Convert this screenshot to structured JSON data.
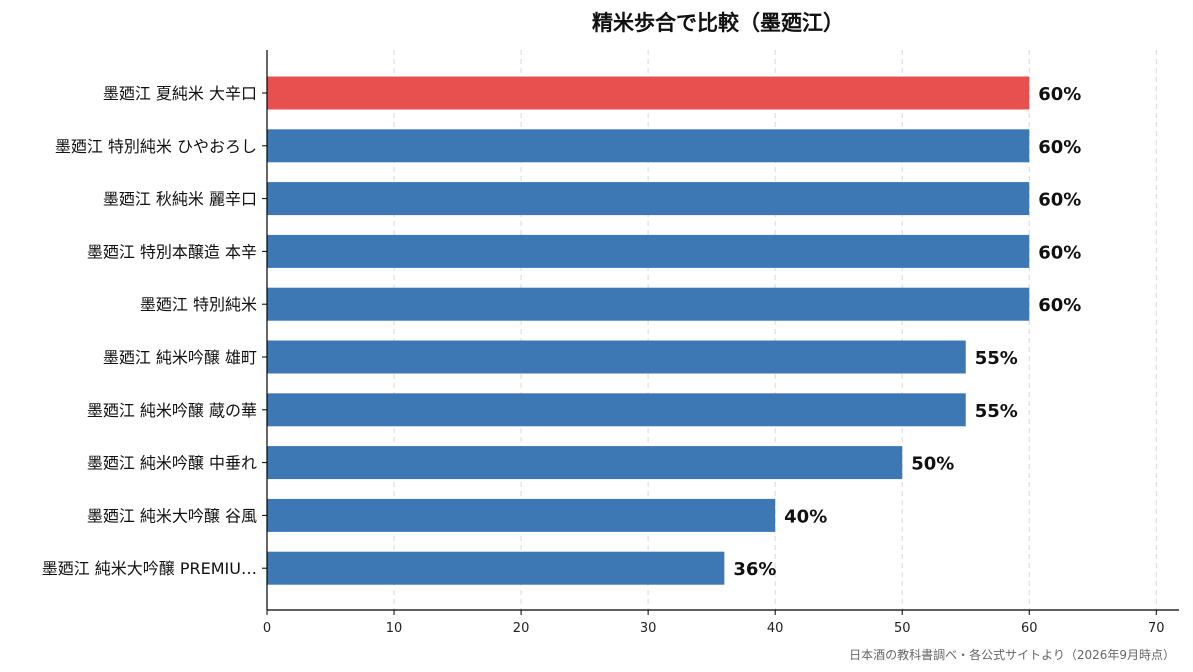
{
  "chart_data": {
    "type": "bar",
    "orientation": "horizontal",
    "title": "精米歩合で比較（墨廼江）",
    "categories": [
      "墨廼江 夏純米 大辛口",
      "墨廼江 特別純米 ひやおろし",
      "墨廼江 秋純米 麗辛口",
      "墨廼江 特別本醸造 本辛",
      "墨廼江 特別純米",
      "墨廼江 純米吟醸 雄町",
      "墨廼江 純米吟醸 蔵の華",
      "墨廼江 純米吟醸 中垂れ",
      "墨廼江 純米大吟醸 谷風",
      "墨廼江 純米大吟醸 PREMIU…"
    ],
    "values": [
      60,
      60,
      60,
      60,
      60,
      55,
      55,
      50,
      40,
      36
    ],
    "value_labels": [
      "60%",
      "60%",
      "60%",
      "60%",
      "60%",
      "55%",
      "55%",
      "50%",
      "40%",
      "36%"
    ],
    "highlight_index": 0,
    "colors": {
      "highlight": "#e8504f",
      "default": "#3d78b5",
      "grid": "#d9d9d9",
      "axis": "#000000"
    },
    "xlim": [
      0,
      71
    ],
    "xticks": [
      0,
      10,
      20,
      30,
      40,
      50,
      60,
      70
    ],
    "grid": "x-dashed",
    "xlabel": "",
    "ylabel": ""
  },
  "source_note": "日本酒の教科書調べ・各公式サイトより（2026年9月時点）"
}
